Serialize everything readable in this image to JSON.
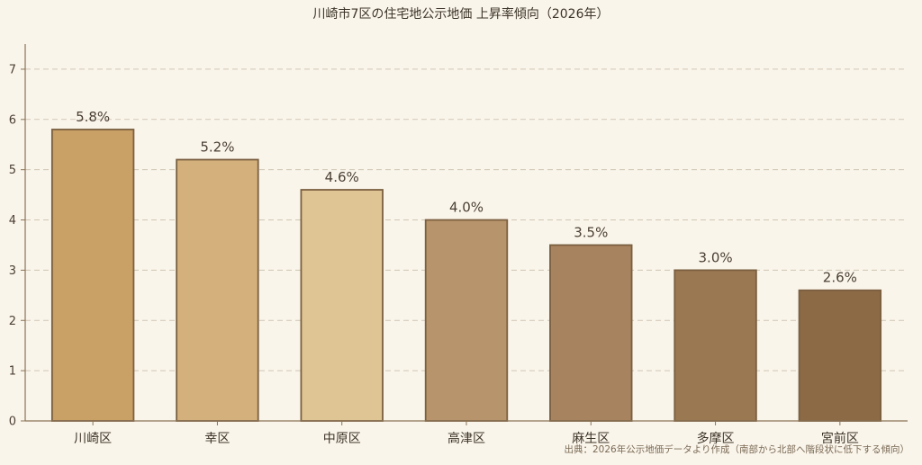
{
  "chart_data": {
    "type": "bar",
    "title": "川崎市7区の住宅地公示地価 上昇率傾向（2026年）",
    "categories": [
      "川崎区",
      "幸区",
      "中原区",
      "高津区",
      "麻生区",
      "多摩区",
      "宮前区"
    ],
    "values": [
      5.8,
      5.2,
      4.6,
      4.0,
      3.5,
      3.0,
      2.6
    ],
    "data_labels": [
      "5.8%",
      "5.2%",
      "4.6%",
      "4.0%",
      "3.5%",
      "3.0%",
      "2.6%"
    ],
    "colors": [
      "#c9a065",
      "#d4b07c",
      "#e0c594",
      "#b8946c",
      "#a8835f",
      "#9a7852",
      "#8b6a45"
    ],
    "ylim": [
      0,
      7.5
    ],
    "yticks": [
      0,
      1,
      2,
      3,
      4,
      5,
      6,
      7
    ],
    "xlabel": "",
    "ylabel": "",
    "grid": true,
    "source": "出典：2026年公示地価データより作成（南部から北部へ階段状に低下する傾向）"
  }
}
